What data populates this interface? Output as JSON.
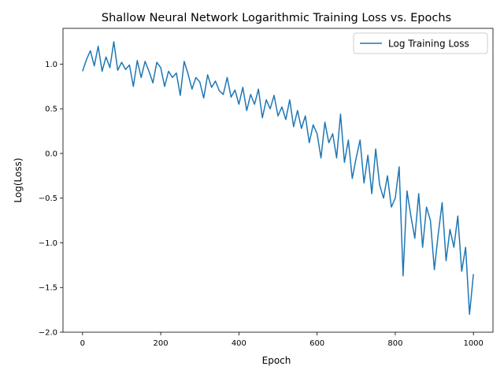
{
  "chart_data": {
    "type": "line",
    "title": "Shallow Neural Network Logarithmic Training Loss vs. Epochs",
    "xlabel": "Epoch",
    "ylabel": "Log(Loss)",
    "xlim": [
      -50,
      1050
    ],
    "ylim": [
      -2.0,
      1.4
    ],
    "xticks": [
      0,
      200,
      400,
      600,
      800,
      1000
    ],
    "xtick_labels": [
      "0",
      "200",
      "400",
      "600",
      "800",
      "1000"
    ],
    "yticks": [
      -2.0,
      -1.5,
      -1.0,
      -0.5,
      0.0,
      0.5,
      1.0
    ],
    "ytick_labels": [
      "−2.0",
      "−1.5",
      "−1.0",
      "−0.5",
      "0.0",
      "0.5",
      "1.0"
    ],
    "grid": false,
    "legend_position": "upper right",
    "colors": {
      "series": "#1f77b4"
    },
    "series": [
      {
        "name": "Log Training Loss",
        "x": [
          0,
          10,
          20,
          30,
          40,
          50,
          60,
          70,
          80,
          90,
          100,
          110,
          120,
          130,
          140,
          150,
          160,
          170,
          180,
          190,
          200,
          210,
          220,
          230,
          240,
          250,
          260,
          270,
          280,
          290,
          300,
          310,
          320,
          330,
          340,
          350,
          360,
          370,
          380,
          390,
          400,
          410,
          420,
          430,
          440,
          450,
          460,
          470,
          480,
          490,
          500,
          510,
          520,
          530,
          540,
          550,
          560,
          570,
          580,
          590,
          600,
          610,
          620,
          630,
          640,
          650,
          660,
          670,
          680,
          690,
          700,
          710,
          720,
          730,
          740,
          750,
          760,
          770,
          780,
          790,
          800,
          810,
          820,
          830,
          840,
          850,
          860,
          870,
          880,
          890,
          900,
          910,
          920,
          930,
          940,
          950,
          960,
          970,
          980,
          990,
          1000
        ],
        "y": [
          0.92,
          1.05,
          1.15,
          0.98,
          1.2,
          0.92,
          1.08,
          0.96,
          1.25,
          0.93,
          1.02,
          0.94,
          0.99,
          0.75,
          1.04,
          0.85,
          1.03,
          0.92,
          0.79,
          1.02,
          0.96,
          0.75,
          0.92,
          0.85,
          0.9,
          0.65,
          1.03,
          0.89,
          0.72,
          0.85,
          0.8,
          0.62,
          0.88,
          0.74,
          0.81,
          0.7,
          0.66,
          0.85,
          0.63,
          0.71,
          0.55,
          0.74,
          0.48,
          0.66,
          0.55,
          0.72,
          0.4,
          0.6,
          0.5,
          0.65,
          0.42,
          0.52,
          0.38,
          0.6,
          0.3,
          0.48,
          0.28,
          0.42,
          0.12,
          0.32,
          0.22,
          -0.05,
          0.35,
          0.12,
          0.22,
          -0.05,
          0.44,
          -0.1,
          0.15,
          -0.28,
          -0.05,
          0.15,
          -0.33,
          -0.02,
          -0.45,
          0.05,
          -0.35,
          -0.5,
          -0.25,
          -0.6,
          -0.5,
          -0.15,
          -1.37,
          -0.42,
          -0.7,
          -0.95,
          -0.45,
          -1.05,
          -0.6,
          -0.75,
          -1.3,
          -0.9,
          -0.55,
          -1.2,
          -0.85,
          -1.05,
          -0.7,
          -1.32,
          -1.05,
          -1.8,
          -1.35
        ]
      }
    ]
  }
}
